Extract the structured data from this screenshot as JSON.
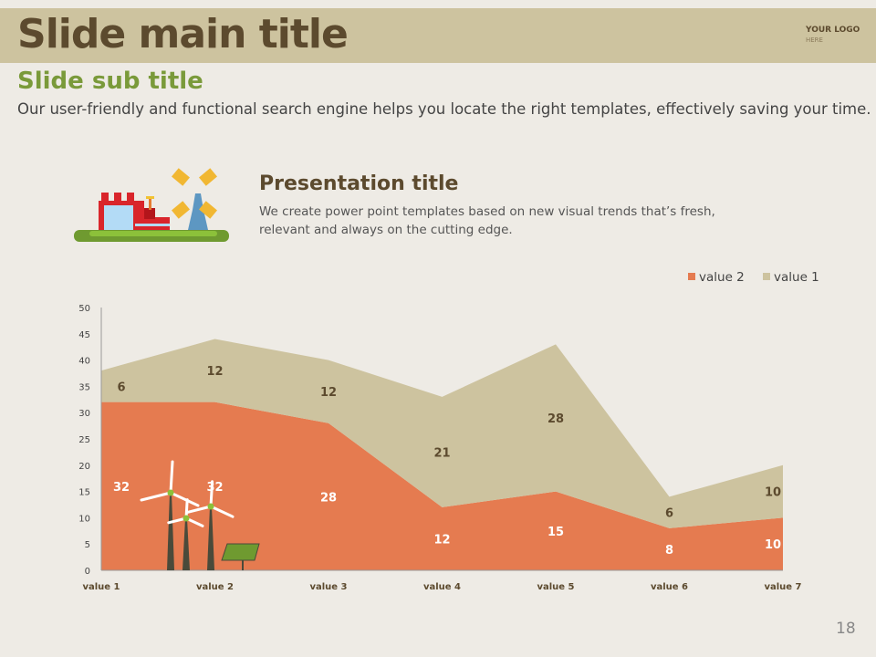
{
  "header": {
    "title": "Slide main title",
    "logo_line1": "YOUR LOGO",
    "logo_line2": "HERE"
  },
  "subtitle": "Slide sub title",
  "description": "Our user-friendly and functional search engine helps you locate the right templates, effectively saving your time.",
  "presentation": {
    "title": "Presentation title",
    "text": "We create power point templates based on new visual trends that’s fresh, relevant and always on the cutting edge."
  },
  "page_number": "18",
  "chart_data": {
    "type": "area",
    "stacked": true,
    "categories": [
      "value 1",
      "value 2",
      "value 3",
      "value 4",
      "value 5",
      "value 6",
      "value 7"
    ],
    "series": [
      {
        "name": "value 2",
        "color": "#e57b50",
        "values": [
          32,
          32,
          28,
          12,
          15,
          8,
          10
        ]
      },
      {
        "name": "value 1",
        "color": "#cdc39f",
        "values": [
          6,
          12,
          12,
          21,
          28,
          6,
          10
        ]
      }
    ],
    "ylim": [
      0,
      50
    ],
    "yticks": [
      0,
      5,
      10,
      15,
      20,
      25,
      30,
      35,
      40,
      45,
      50
    ],
    "legend": "top-right"
  }
}
